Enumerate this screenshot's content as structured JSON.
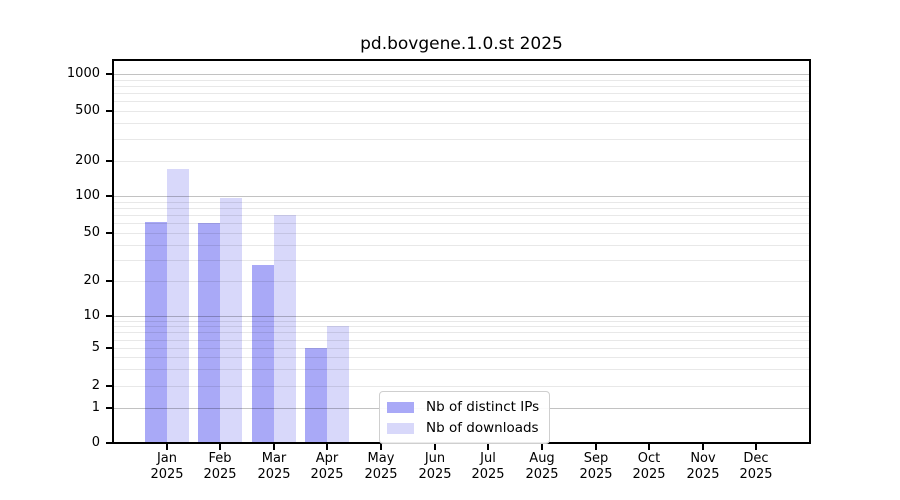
{
  "title": "pd.bovgene.1.0.st 2025",
  "chart_data": {
    "type": "bar",
    "title": "pd.bovgene.1.0.st 2025",
    "categories": [
      "Jan",
      "Feb",
      "Mar",
      "Apr",
      "May",
      "Jun",
      "Jul",
      "Aug",
      "Sep",
      "Oct",
      "Nov",
      "Dec"
    ],
    "x_tick_second_line": "2025",
    "series": [
      {
        "name": "Nb of distinct IPs",
        "color": "#a9a9f7",
        "values": [
          62,
          60,
          27,
          5,
          0,
          0,
          0,
          0,
          0,
          0,
          0,
          0
        ]
      },
      {
        "name": "Nb of downloads",
        "color": "#d8d8fa",
        "values": [
          170,
          97,
          70,
          8,
          0,
          0,
          0,
          0,
          0,
          0,
          0,
          0
        ]
      }
    ],
    "xlabel": "",
    "ylabel": "",
    "y_ticks": [
      0,
      1,
      2,
      5,
      10,
      20,
      50,
      100,
      200,
      500,
      1000
    ],
    "y_major_gridlines": [
      1,
      10,
      100,
      1000
    ],
    "y_scale": "log above 1, short linear segment from 0 to 1",
    "ylim": [
      0,
      1400
    ],
    "grid": "horizontal major + minor gridlines, drawn over bars",
    "legend_position": "inside plot, bottom center-left",
    "background_color": "#ffffff",
    "axis_color": "#000000"
  },
  "legend": {
    "items": [
      {
        "label": "Nb of distinct IPs",
        "color": "#a9a9f7"
      },
      {
        "label": "Nb of downloads",
        "color": "#d8d8fa"
      }
    ]
  }
}
